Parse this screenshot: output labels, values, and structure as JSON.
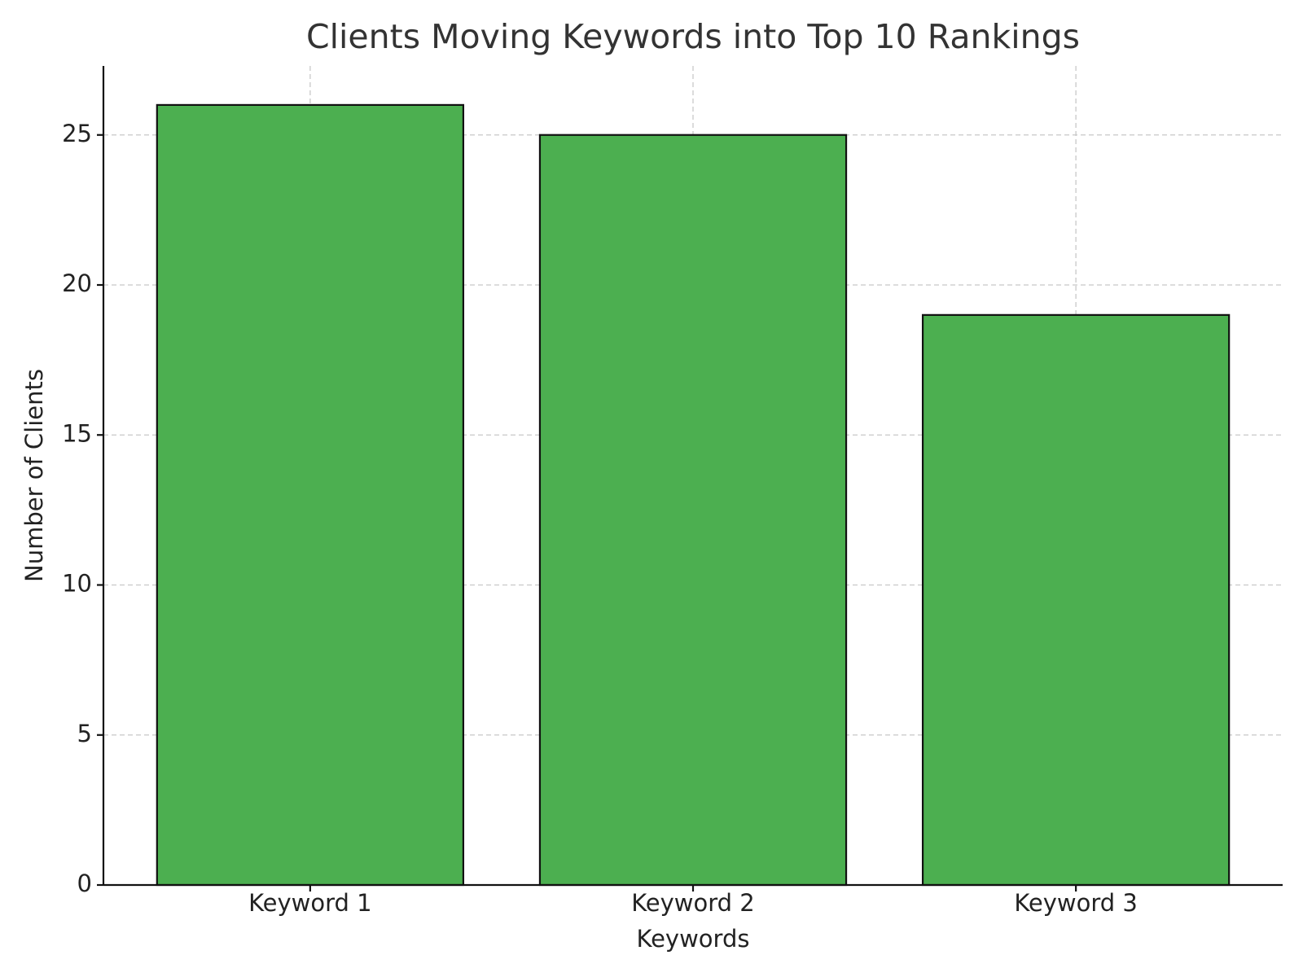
{
  "chart_data": {
    "type": "bar",
    "title": "Clients Moving Keywords into Top 10 Rankings",
    "x_label": "Keywords",
    "y_label": "Number of Clients",
    "categories": [
      "Keyword 1",
      "Keyword 2",
      "Keyword 3"
    ],
    "values": [
      26,
      25,
      19
    ],
    "color": "#4caf50",
    "ylim": [
      0,
      27.3
    ],
    "yticks": [
      0,
      5,
      10,
      15,
      20,
      25
    ],
    "grid": true
  }
}
